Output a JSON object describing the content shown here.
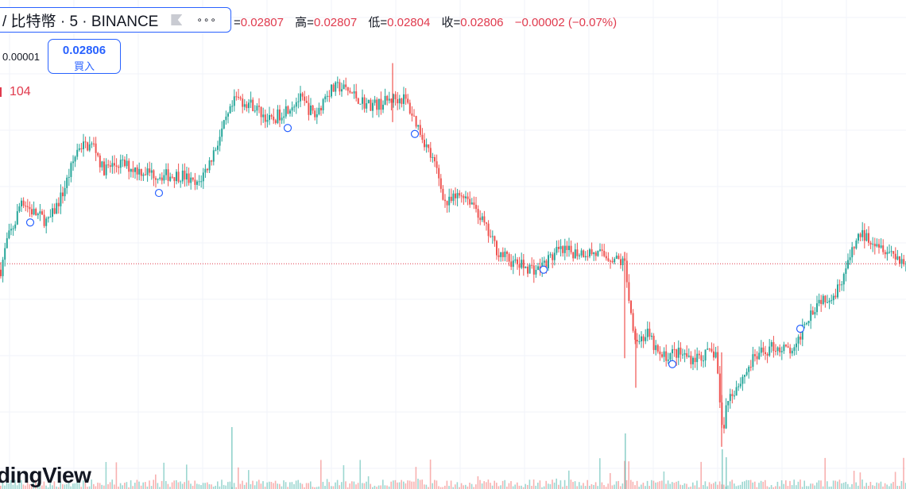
{
  "header": {
    "symbol_title": "/ 比特幣 · 5 · BINANCE",
    "flag_icon": "flag-icon",
    "more_icon": "more-dots-icon",
    "more_label": "∘∘∘"
  },
  "ohlc": {
    "open_prefix": "=",
    "open": "0.02807",
    "high_label": "高=",
    "high": "0.02807",
    "low_label": "低=",
    "low": "0.02804",
    "close_label": "收=",
    "close": "0.02806",
    "change": "−0.00002 (−0.07%)"
  },
  "tick": {
    "label": "0.00001"
  },
  "buy_button": {
    "price": "0.02806",
    "label": "買入"
  },
  "volume": {
    "value": "104"
  },
  "watermark": "dingView",
  "colors": {
    "up": "#26a69a",
    "down": "#ef5350",
    "accent": "#2962ff",
    "grid": "#f0f3fa",
    "priceline": "#e03a4d"
  },
  "chart_data": {
    "type": "candlestick",
    "interval_minutes": 5,
    "last_price": 0.02806,
    "y_range": [
      0.0277,
      0.02848
    ],
    "trend_polyline": [
      [
        0,
        0.02805
      ],
      [
        8,
        0.0281
      ],
      [
        18,
        0.02813
      ],
      [
        26,
        0.02817
      ],
      [
        38,
        0.02815
      ],
      [
        60,
        0.02813
      ],
      [
        78,
        0.02818
      ],
      [
        98,
        0.02826
      ],
      [
        118,
        0.02826
      ],
      [
        128,
        0.02822
      ],
      [
        150,
        0.02823
      ],
      [
        170,
        0.02822
      ],
      [
        200,
        0.02821
      ],
      [
        230,
        0.02821
      ],
      [
        246,
        0.02819
      ],
      [
        262,
        0.02823
      ],
      [
        280,
        0.02829
      ],
      [
        296,
        0.02834
      ],
      [
        316,
        0.02833
      ],
      [
        340,
        0.0283
      ],
      [
        356,
        0.02832
      ],
      [
        376,
        0.02834
      ],
      [
        396,
        0.02831
      ],
      [
        410,
        0.02835
      ],
      [
        426,
        0.02836
      ],
      [
        440,
        0.02835
      ],
      [
        460,
        0.02833
      ],
      [
        476,
        0.02833
      ],
      [
        494,
        0.02834
      ],
      [
        508,
        0.02834
      ],
      [
        526,
        0.02829
      ],
      [
        548,
        0.02822
      ],
      [
        560,
        0.02816
      ],
      [
        582,
        0.02818
      ],
      [
        596,
        0.02816
      ],
      [
        610,
        0.02812
      ],
      [
        626,
        0.02808
      ],
      [
        646,
        0.02806
      ],
      [
        676,
        0.02805
      ],
      [
        700,
        0.02808
      ],
      [
        740,
        0.02808
      ],
      [
        770,
        0.02807
      ],
      [
        786,
        0.02806
      ],
      [
        792,
        0.02798
      ],
      [
        800,
        0.02793
      ],
      [
        814,
        0.02794
      ],
      [
        830,
        0.0279
      ],
      [
        848,
        0.02791
      ],
      [
        870,
        0.0279
      ],
      [
        900,
        0.02791
      ],
      [
        908,
        0.02777
      ],
      [
        914,
        0.02783
      ],
      [
        930,
        0.02786
      ],
      [
        948,
        0.0279
      ],
      [
        972,
        0.02792
      ],
      [
        1000,
        0.02791
      ],
      [
        1010,
        0.02796
      ],
      [
        1030,
        0.028
      ],
      [
        1050,
        0.02801
      ],
      [
        1066,
        0.02806
      ],
      [
        1080,
        0.02811
      ],
      [
        1100,
        0.0281
      ],
      [
        1120,
        0.02808
      ],
      [
        1140,
        0.02806
      ]
    ],
    "markers": [
      [
        38,
        0.02813
      ],
      [
        200,
        0.02818
      ],
      [
        362,
        0.02829
      ],
      [
        522,
        0.02828
      ],
      [
        684,
        0.02805
      ],
      [
        846,
        0.02789
      ],
      [
        1007,
        0.02795
      ]
    ],
    "spikes": [
      [
        494,
        0.0284,
        0.0283
      ],
      [
        786,
        0.02808,
        0.0279
      ],
      [
        800,
        0.02795,
        0.02785
      ],
      [
        908,
        0.02791,
        0.02775
      ]
    ]
  }
}
